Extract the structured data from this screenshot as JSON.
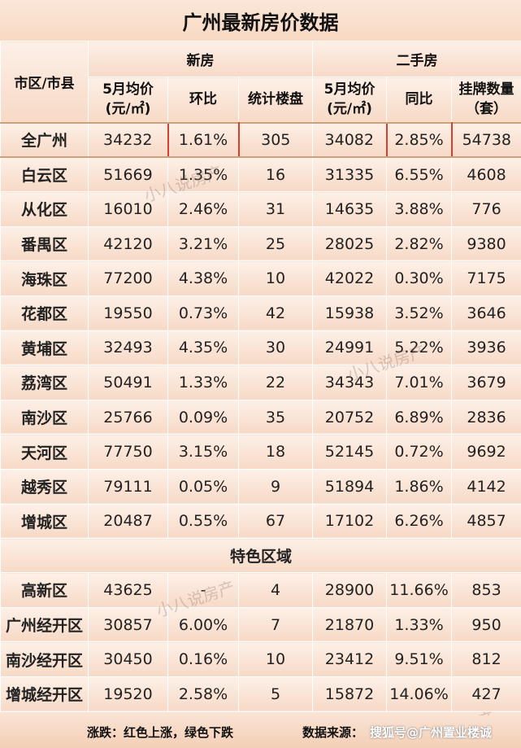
{
  "title": "广州最新房价数据",
  "headers": {
    "region": "市区/市县",
    "new_group": "新房",
    "second_group": "二手房",
    "new_cols": [
      "5月均价\n(元/㎡)",
      "环比",
      "统计楼盘"
    ],
    "second_cols": [
      "5月均价\n(元/㎡)",
      "同比",
      "挂牌数量\n（套）"
    ]
  },
  "rows": [
    {
      "name": "全广州",
      "new_price": "34232",
      "new_mom": "1.61%",
      "new_mom_color": "red",
      "projects": "305",
      "sec_price": "34082",
      "sec_yoy": "2.85%",
      "sec_yoy_color": "red",
      "listings": "54738"
    },
    {
      "name": "白云区",
      "new_price": "51669",
      "new_mom": "1.35%",
      "new_mom_color": "red",
      "projects": "16",
      "sec_price": "31335",
      "sec_yoy": "6.55%",
      "sec_yoy_color": "red",
      "listings": "4608"
    },
    {
      "name": "从化区",
      "new_price": "16010",
      "new_mom": "2.46%",
      "new_mom_color": "red",
      "projects": "31",
      "sec_price": "14635",
      "sec_yoy": "3.88%",
      "sec_yoy_color": "red",
      "listings": "776"
    },
    {
      "name": "番禺区",
      "new_price": "42120",
      "new_mom": "3.21%",
      "new_mom_color": "red",
      "projects": "25",
      "sec_price": "28025",
      "sec_yoy": "2.82%",
      "sec_yoy_color": "red",
      "listings": "9380"
    },
    {
      "name": "海珠区",
      "new_price": "77200",
      "new_mom": "4.38%",
      "new_mom_color": "red",
      "projects": "10",
      "sec_price": "42022",
      "sec_yoy": "0.30%",
      "sec_yoy_color": "green",
      "listings": "7175"
    },
    {
      "name": "花都区",
      "new_price": "19550",
      "new_mom": "0.73%",
      "new_mom_color": "green",
      "projects": "42",
      "sec_price": "15938",
      "sec_yoy": "3.52%",
      "sec_yoy_color": "red",
      "listings": "3646"
    },
    {
      "name": "黄埔区",
      "new_price": "32493",
      "new_mom": "4.35%",
      "new_mom_color": "red",
      "projects": "30",
      "sec_price": "24991",
      "sec_yoy": "5.22%",
      "sec_yoy_color": "green",
      "listings": "3936"
    },
    {
      "name": "荔湾区",
      "new_price": "50491",
      "new_mom": "1.33%",
      "new_mom_color": "green",
      "projects": "22",
      "sec_price": "34343",
      "sec_yoy": "7.01%",
      "sec_yoy_color": "green",
      "listings": "3679"
    },
    {
      "name": "南沙区",
      "new_price": "25766",
      "new_mom": "0.09%",
      "new_mom_color": "red",
      "projects": "35",
      "sec_price": "20752",
      "sec_yoy": "6.89%",
      "sec_yoy_color": "red",
      "listings": "2836"
    },
    {
      "name": "天河区",
      "new_price": "77750",
      "new_mom": "3.15%",
      "new_mom_color": "red",
      "projects": "18",
      "sec_price": "52145",
      "sec_yoy": "0.72%",
      "sec_yoy_color": "red",
      "listings": "9692"
    },
    {
      "name": "越秀区",
      "new_price": "79111",
      "new_mom": "0.05%",
      "new_mom_color": "green",
      "projects": "9",
      "sec_price": "51894",
      "sec_yoy": "1.86%",
      "sec_yoy_color": "green",
      "listings": "4142"
    },
    {
      "name": "增城区",
      "new_price": "20487",
      "new_mom": "0.55%",
      "new_mom_color": "green",
      "projects": "67",
      "sec_price": "17102",
      "sec_yoy": "6.26%",
      "sec_yoy_color": "green",
      "listings": "4857"
    }
  ],
  "special_section": "特色区域",
  "special_rows": [
    {
      "name": "高新区",
      "new_price": "43625",
      "new_mom": "-",
      "new_mom_color": "black",
      "projects": "4",
      "sec_price": "28900",
      "sec_yoy": "11.66%",
      "sec_yoy_color": "green",
      "listings": "853"
    },
    {
      "name": "广州经开区",
      "new_price": "30857",
      "new_mom": "6.00%",
      "new_mom_color": "red",
      "projects": "7",
      "sec_price": "21870",
      "sec_yoy": "1.33%",
      "sec_yoy_color": "green",
      "listings": "950"
    },
    {
      "name": "南沙经开区",
      "new_price": "30450",
      "new_mom": "0.16%",
      "new_mom_color": "green",
      "projects": "10",
      "sec_price": "23412",
      "sec_yoy": "9.51%",
      "sec_yoy_color": "red",
      "listings": "812"
    },
    {
      "name": "增城经开区",
      "new_price": "19520",
      "new_mom": "2.58%",
      "new_mom_color": "red",
      "projects": "5",
      "sec_price": "15872",
      "sec_yoy": "14.06%",
      "sec_yoy_color": "green",
      "listings": "427"
    }
  ],
  "footer": {
    "legend": "涨跌：红色上涨，绿色下跌",
    "source": "数据来源：",
    "watermark_overlay": "搜狐号@广州置业楼诚"
  },
  "watermarks": [
    "小八说房产",
    "小八说房产",
    "小八说房产",
    "小八说房产"
  ],
  "colors": {
    "red": "#e8202a",
    "green": "#12a84a",
    "background": "#fbe3d3"
  }
}
